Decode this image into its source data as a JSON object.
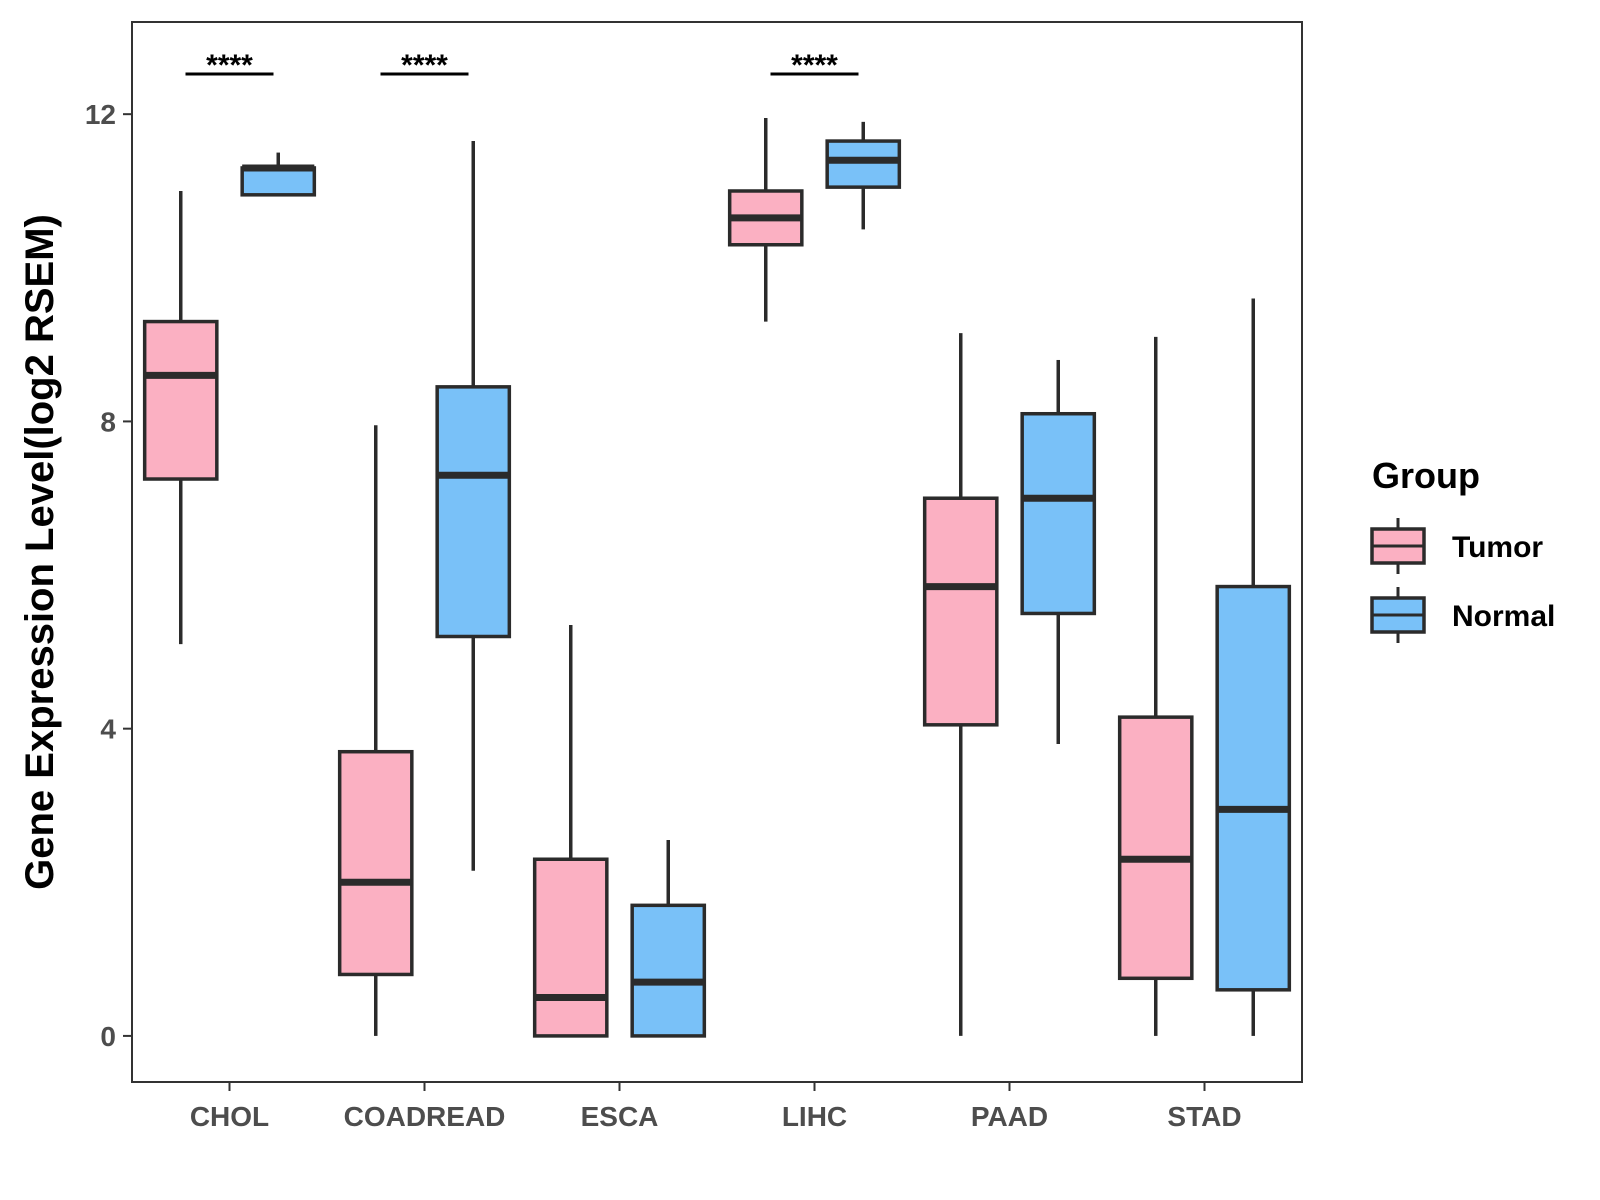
{
  "chart_data": {
    "type": "boxplot",
    "title": "",
    "xlabel": "",
    "ylabel": "Gene Expression Level(log2 RSEM)",
    "ylim": [
      -0.6,
      13.2
    ],
    "yticks": [
      0,
      4,
      8,
      12
    ],
    "grid": false,
    "legend": {
      "title": "Group",
      "position": "right",
      "entries": [
        {
          "name": "Tumor",
          "color": "#FBB0C2"
        },
        {
          "name": "Normal",
          "color": "#79C1F8"
        }
      ]
    },
    "categories": [
      "CHOL",
      "COADREAD",
      "ESCA",
      "LIHC",
      "PAAD",
      "STAD"
    ],
    "series": [
      {
        "name": "Tumor",
        "color": "#FBB0C2",
        "boxes": [
          {
            "min": 5.1,
            "q1": 7.25,
            "median": 8.6,
            "q3": 9.3,
            "max": 11.0
          },
          {
            "min": 0.0,
            "q1": 0.8,
            "median": 2.0,
            "q3": 3.7,
            "max": 7.95
          },
          {
            "min": 0.0,
            "q1": 0.0,
            "median": 0.5,
            "q3": 2.3,
            "max": 5.35
          },
          {
            "min": 9.3,
            "q1": 10.3,
            "median": 10.65,
            "q3": 11.0,
            "max": 11.95
          },
          {
            "min": 0.0,
            "q1": 4.05,
            "median": 5.85,
            "q3": 7.0,
            "max": 9.15
          },
          {
            "min": 0.0,
            "q1": 0.75,
            "median": 2.3,
            "q3": 4.15,
            "max": 9.1
          }
        ]
      },
      {
        "name": "Normal",
        "color": "#79C1F8",
        "boxes": [
          {
            "min": 10.95,
            "q1": 10.95,
            "median": 11.3,
            "q3": 11.3,
            "max": 11.5
          },
          {
            "min": 2.15,
            "q1": 5.2,
            "median": 7.3,
            "q3": 8.45,
            "max": 11.65
          },
          {
            "min": 0.0,
            "q1": 0.0,
            "median": 0.7,
            "q3": 1.7,
            "max": 2.55
          },
          {
            "min": 10.5,
            "q1": 11.05,
            "median": 11.4,
            "q3": 11.65,
            "max": 11.9
          },
          {
            "min": 3.8,
            "q1": 5.5,
            "median": 7.0,
            "q3": 8.1,
            "max": 8.8
          },
          {
            "min": 0.0,
            "q1": 0.6,
            "median": 2.95,
            "q3": 5.85,
            "max": 9.6
          }
        ]
      }
    ],
    "annotations": [
      {
        "category": "CHOL",
        "label": "****"
      },
      {
        "category": "COADREAD",
        "label": "****"
      },
      {
        "category": "LIHC",
        "label": "****"
      }
    ]
  }
}
